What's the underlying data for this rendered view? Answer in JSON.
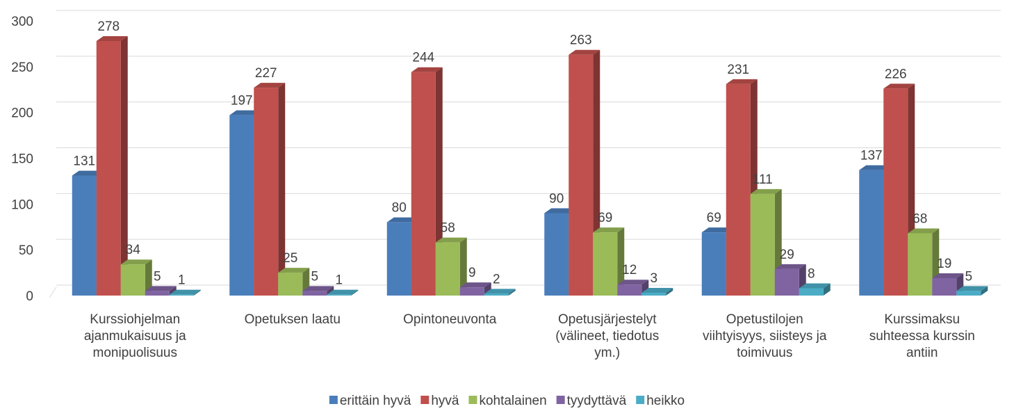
{
  "chart_data": {
    "type": "bar3d",
    "categories": [
      "Kurssiohjelman ajanmukaisuus ja monipuolisuus",
      "Opetuksen laatu",
      "Opintoneuvonta",
      "Opetusjärjestelyt (välineet, tiedotus ym.)",
      "Opetustilojen viihtyisyys, siisteys ja toimivuus",
      "Kurssimaksu suhteessa kurssin antiin"
    ],
    "series": [
      {
        "name": "erittäin hyvä",
        "color": "#4a7ebb",
        "values": [
          131,
          197,
          80,
          90,
          69,
          137
        ]
      },
      {
        "name": "hyvä",
        "color": "#c0504d",
        "values": [
          278,
          227,
          244,
          263,
          231,
          226
        ]
      },
      {
        "name": "kohtalainen",
        "color": "#9bbb59",
        "values": [
          34,
          25,
          58,
          69,
          111,
          68
        ]
      },
      {
        "name": "tyydyttävä",
        "color": "#8064a2",
        "values": [
          5,
          5,
          9,
          12,
          29,
          19
        ]
      },
      {
        "name": "heikko",
        "color": "#4bacc6",
        "values": [
          1,
          1,
          2,
          3,
          8,
          5
        ]
      }
    ],
    "ylim": [
      0,
      300
    ],
    "yticks": [
      0,
      50,
      100,
      150,
      200,
      250,
      300
    ],
    "grid": true,
    "legend": "bottom"
  }
}
